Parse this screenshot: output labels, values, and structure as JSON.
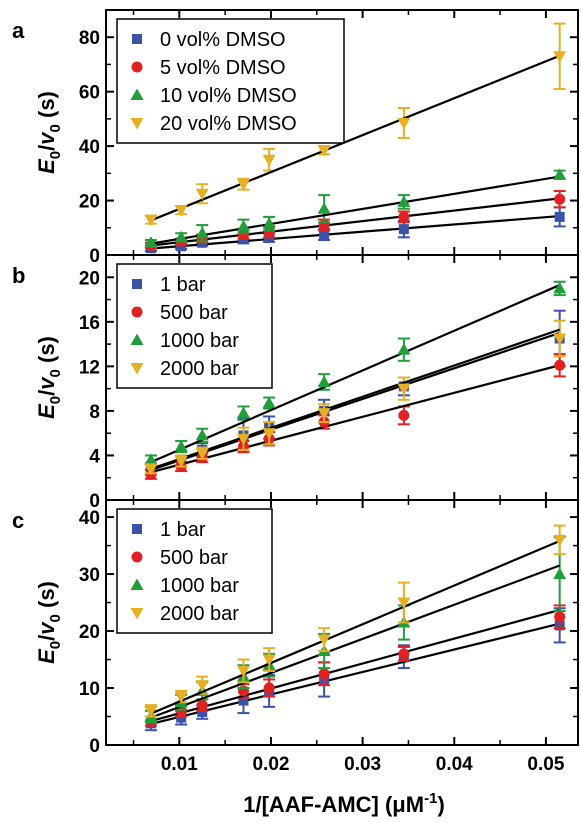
{
  "figure": {
    "xlabel_main": "1/[AAF-AMC] (μM",
    "xlabel_sup": "-1",
    "xlabel_close": ")",
    "x_ticks": [
      0.01,
      0.02,
      0.03,
      0.04,
      0.05
    ],
    "x_tick_labels": [
      "0.01",
      "0.02",
      "0.03",
      "0.04",
      "0.05"
    ],
    "xlim": [
      0.002,
      0.0535
    ],
    "ylabel": {
      "E": "E",
      "sub0": "0",
      "slash": "/",
      "v": "v",
      "tail": " (s)"
    }
  },
  "colors": {
    "blue": "#3a52a8",
    "red": "#e22222",
    "green": "#1f9e3a",
    "gold": "#e5b024",
    "black": "#000000"
  },
  "chart_data": [
    {
      "type": "scatter",
      "panel_label": "a",
      "ylim": [
        0,
        90
      ],
      "y_ticks": [
        0,
        20,
        40,
        60,
        80
      ],
      "legend_position": "top-left",
      "x": [
        0.0069,
        0.0102,
        0.0125,
        0.017,
        0.0198,
        0.0258,
        0.0345,
        0.0515
      ],
      "series": [
        {
          "name": "0 vol% DMSO",
          "color": "blue",
          "marker": "square",
          "values": [
            2.5,
            3.2,
            4.5,
            5.8,
            6.3,
            7.5,
            9.5,
            14
          ],
          "errors": [
            1,
            1,
            1,
            1.5,
            1.5,
            2,
            3,
            3.5
          ],
          "fit": [
            2.4,
            14.3
          ]
        },
        {
          "name": "5 vol% DMSO",
          "color": "red",
          "marker": "circle",
          "values": [
            3.5,
            5,
            6,
            7.5,
            8.5,
            11,
            14,
            20.5
          ],
          "errors": [
            1,
            1,
            1.5,
            1.5,
            2,
            2,
            2,
            3
          ],
          "fit": [
            3.5,
            20.8
          ]
        },
        {
          "name": "10 vol% DMSO",
          "color": "green",
          "marker": "triangle-up",
          "values": [
            4.5,
            6.5,
            8,
            10.5,
            11.5,
            17,
            19.5,
            29.5
          ],
          "errors": [
            1,
            1.5,
            3,
            2.5,
            2.5,
            5,
            2.5,
            1.5
          ],
          "fit": [
            4.2,
            28.8
          ]
        },
        {
          "name": "20 vol% DMSO",
          "color": "gold",
          "marker": "triangle-down",
          "values": [
            13,
            16.5,
            22.5,
            26,
            35,
            38.5,
            48.5,
            73
          ],
          "errors": [
            1.5,
            1.5,
            3.5,
            2,
            4,
            1.5,
            5.5,
            12
          ],
          "fit": [
            12.7,
            73.2
          ]
        }
      ]
    },
    {
      "type": "scatter",
      "panel_label": "b",
      "ylim": [
        0,
        22
      ],
      "y_ticks": [
        0,
        4,
        8,
        12,
        16,
        20
      ],
      "legend_position": "top-left",
      "x": [
        0.0069,
        0.0102,
        0.0125,
        0.017,
        0.0198,
        0.0258,
        0.0345,
        0.0515
      ],
      "series": [
        {
          "name": "1 bar",
          "color": "blue",
          "marker": "square",
          "values": [
            2.8,
            3.5,
            4.5,
            5.8,
            6.5,
            8,
            10.2,
            14.5
          ],
          "errors": [
            0.5,
            0.5,
            0.6,
            1.5,
            1,
            1,
            0.8,
            2.5
          ],
          "fit": [
            2.7,
            15
          ]
        },
        {
          "name": "500 bar",
          "color": "red",
          "marker": "circle",
          "values": [
            2.3,
            3,
            3.8,
            4.8,
            5.5,
            7,
            7.6,
            12.1
          ],
          "errors": [
            0.4,
            0.4,
            0.4,
            0.5,
            0.6,
            0.6,
            0.8,
            1
          ],
          "fit": [
            2.5,
            12.1
          ]
        },
        {
          "name": "1000 bar",
          "color": "green",
          "marker": "triangle-up",
          "values": [
            3.6,
            4.8,
            5.8,
            7.8,
            8.7,
            10.6,
            13.5,
            19
          ],
          "errors": [
            0.4,
            0.5,
            0.6,
            0.6,
            0.5,
            0.7,
            1,
            0.6
          ],
          "fit": [
            3.4,
            19.3
          ]
        },
        {
          "name": "2000 bar",
          "color": "gold",
          "marker": "triangle-down",
          "values": [
            2.8,
            3.5,
            4.2,
            5.5,
            6,
            7.8,
            10,
            14.5
          ],
          "errors": [
            0.4,
            0.5,
            0.5,
            1,
            1,
            0.8,
            1,
            1.6
          ],
          "fit": [
            2.8,
            15.3
          ]
        }
      ]
    },
    {
      "type": "scatter",
      "panel_label": "c",
      "ylim": [
        0,
        43
      ],
      "y_ticks": [
        0,
        10,
        20,
        30,
        40
      ],
      "legend_position": "top-left",
      "x": [
        0.0069,
        0.0102,
        0.0125,
        0.017,
        0.0198,
        0.0258,
        0.0345,
        0.0515
      ],
      "series": [
        {
          "name": "1 bar",
          "color": "blue",
          "marker": "square",
          "values": [
            3.8,
            4.8,
            5.8,
            7.8,
            9.5,
            11.5,
            15.5,
            21
          ],
          "errors": [
            1.2,
            1.2,
            1.2,
            2.2,
            2.8,
            3,
            2,
            3
          ],
          "fit": [
            3.7,
            21.3
          ]
        },
        {
          "name": "500 bar",
          "color": "red",
          "marker": "circle",
          "values": [
            4.2,
            6,
            7,
            9.5,
            10,
            12.5,
            16,
            22.5
          ],
          "errors": [
            0.8,
            1,
            1,
            1.2,
            1.5,
            2,
            1.2,
            2
          ],
          "fit": [
            4.2,
            23.7
          ]
        },
        {
          "name": "1000 bar",
          "color": "green",
          "marker": "triangle-up",
          "values": [
            5,
            7.5,
            9.5,
            12,
            14,
            16.5,
            21.5,
            30
          ],
          "errors": [
            1,
            1.3,
            1.5,
            2,
            2,
            3,
            3,
            6.5
          ],
          "fit": [
            4.8,
            31.5
          ]
        },
        {
          "name": "2000 bar",
          "color": "gold",
          "marker": "triangle-down",
          "values": [
            6,
            8.5,
            10.5,
            13,
            15,
            18.5,
            25,
            36
          ],
          "errors": [
            1,
            1,
            1.5,
            2,
            2,
            2,
            3.5,
            2.5
          ],
          "fit": [
            5.5,
            35.8
          ]
        }
      ]
    }
  ]
}
